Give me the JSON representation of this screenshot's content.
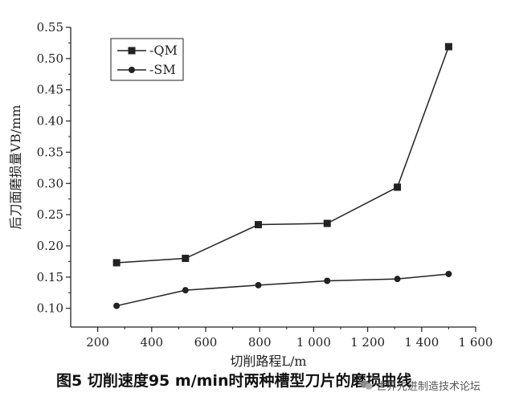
{
  "chart_data": {
    "type": "line",
    "title": "",
    "xlabel": "切削路程L/m",
    "ylabel": "后刀面磨损量VB/mm",
    "xlim": [
      100,
      1600
    ],
    "ylim": [
      0.07,
      0.55
    ],
    "x_ticks": [
      200,
      400,
      600,
      800,
      1000,
      1200,
      1400,
      1600
    ],
    "x_tick_labels": [
      "200",
      "400",
      "600",
      "800",
      "1 000",
      "1 200",
      "1 400",
      "1 600"
    ],
    "y_ticks": [
      0.1,
      0.15,
      0.2,
      0.25,
      0.3,
      0.35,
      0.4,
      0.45,
      0.5,
      0.55
    ],
    "y_tick_labels": [
      "0.10",
      "0.15",
      "0.20",
      "0.25",
      "0.30",
      "0.35",
      "0.40",
      "0.45",
      "0.50",
      "0.55"
    ],
    "legend_position": "top-left",
    "series": [
      {
        "name": "-QM",
        "marker": "square",
        "x": [
          270,
          525,
          795,
          1050,
          1310,
          1500
        ],
        "values": [
          0.173,
          0.18,
          0.234,
          0.236,
          0.294,
          0.519
        ]
      },
      {
        "name": "-SM",
        "marker": "circle",
        "x": [
          270,
          525,
          795,
          1050,
          1310,
          1500
        ],
        "values": [
          0.104,
          0.129,
          0.137,
          0.144,
          0.147,
          0.155
        ]
      }
    ]
  },
  "caption": "图5   切削速度95 m/min时两种槽型刀片的磨损曲线",
  "watermark": "世界先进制造技术论坛",
  "colors": {
    "ink": "#222222"
  }
}
